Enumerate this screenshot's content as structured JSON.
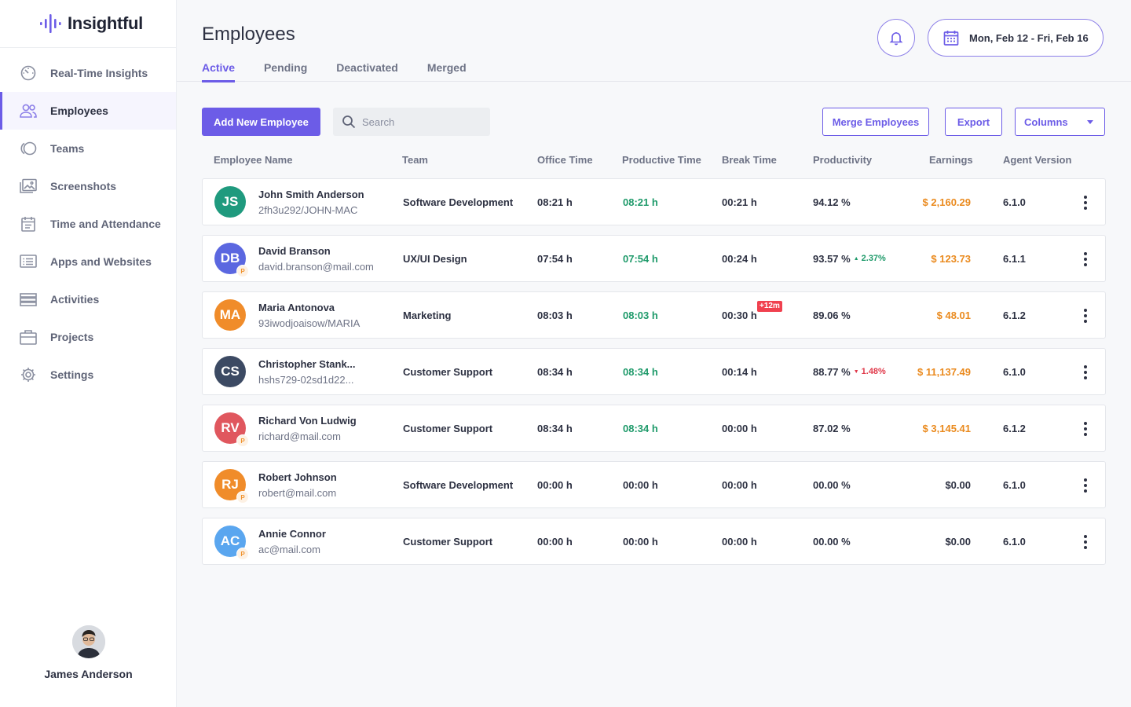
{
  "app": {
    "logo_text": "Insightful",
    "brand_color": "#6c5ce7"
  },
  "sidebar": {
    "items": [
      {
        "label": "Real-Time Insights",
        "icon": "speedometer-icon"
      },
      {
        "label": "Employees",
        "icon": "users-icon",
        "active": true
      },
      {
        "label": "Teams",
        "icon": "teams-icon"
      },
      {
        "label": "Screenshots",
        "icon": "image-gallery-icon"
      },
      {
        "label": "Time and Attendance",
        "icon": "calendar-icon"
      },
      {
        "label": "Apps and Websites",
        "icon": "browser-list-icon"
      },
      {
        "label": "Activities",
        "icon": "stacked-bars-icon"
      },
      {
        "label": "Projects",
        "icon": "briefcase-icon"
      },
      {
        "label": "Settings",
        "icon": "gear-icon"
      }
    ],
    "profile_name": "James Anderson"
  },
  "header": {
    "title": "Employees",
    "tabs": [
      {
        "label": "Active",
        "active": true
      },
      {
        "label": "Pending"
      },
      {
        "label": "Deactivated"
      },
      {
        "label": "Merged"
      }
    ],
    "date_range": "Mon, Feb 12 - Fri,  Feb 16"
  },
  "toolbar": {
    "add_label": "Add New Employee",
    "search_placeholder": "Search",
    "merge_label": "Merge Employees",
    "export_label": "Export",
    "columns_label": "Columns"
  },
  "table": {
    "columns": [
      "Employee Name",
      "Team",
      "Office Time",
      "Productive Time",
      "Break Time",
      "Productivity",
      "Earnings",
      "Agent Version"
    ],
    "rows": [
      {
        "initials": "JS",
        "avatar_color": "#1f9a7e",
        "pending": false,
        "name": "John Smith Anderson",
        "sub": "2fh3u292/JOHN-MAC",
        "team": "Software Development",
        "office": "08:21 h",
        "productive": "08:21 h",
        "productive_green": true,
        "break": "00:21 h",
        "break_extra": "",
        "productivity": "94.12 %",
        "delta": "",
        "delta_dir": "",
        "earnings": "$ 2,160.29",
        "earnings_orange": true,
        "version": "6.1.0"
      },
      {
        "initials": "DB",
        "avatar_color": "#5b67e0",
        "pending": true,
        "pending_label": "P",
        "name": "David Branson",
        "sub": "david.branson@mail.com",
        "team": "UX/UI Design",
        "office": "07:54 h",
        "productive": "07:54 h",
        "productive_green": true,
        "break": "00:24 h",
        "break_extra": "",
        "productivity": "93.57 %",
        "delta": "2.37%",
        "delta_dir": "up",
        "earnings": "$ 123.73",
        "earnings_orange": true,
        "version": "6.1.1"
      },
      {
        "initials": "MA",
        "avatar_color": "#f08c2a",
        "pending": false,
        "name": "Maria Antonova",
        "sub": "93iwodjoaisow/MARIA",
        "team": "Marketing",
        "office": "08:03 h",
        "productive": "08:03 h",
        "productive_green": true,
        "break": "00:30 h",
        "break_extra": "+12m",
        "productivity": "89.06 %",
        "delta": "",
        "delta_dir": "",
        "earnings": "$ 48.01",
        "earnings_orange": true,
        "version": "6.1.2"
      },
      {
        "initials": "CS",
        "avatar_color": "#3c4a63",
        "pending": false,
        "name": "Christopher Stank...",
        "sub": "hshs729-02sd1d22...",
        "team": "Customer Support",
        "office": "08:34 h",
        "productive": "08:34 h",
        "productive_green": true,
        "break": "00:14 h",
        "break_extra": "",
        "productivity": "88.77 %",
        "delta": "1.48%",
        "delta_dir": "down",
        "earnings": "$ 11,137.49",
        "earnings_orange": true,
        "version": "6.1.0"
      },
      {
        "initials": "RV",
        "avatar_color": "#e0575e",
        "pending": true,
        "pending_label": "P",
        "name": "Richard Von Ludwig",
        "sub": "richard@mail.com",
        "team": "Customer Support",
        "office": "08:34 h",
        "productive": "08:34 h",
        "productive_green": true,
        "break": "00:00 h",
        "break_extra": "",
        "productivity": "87.02 %",
        "delta": "",
        "delta_dir": "",
        "earnings": "$ 3,145.41",
        "earnings_orange": true,
        "version": "6.1.2"
      },
      {
        "initials": "RJ",
        "avatar_color": "#f08c2a",
        "pending": true,
        "pending_label": "P",
        "name": "Robert Johnson",
        "sub": "robert@mail.com",
        "team": "Software Development",
        "office": "00:00 h",
        "productive": "00:00 h",
        "productive_green": false,
        "break": "00:00 h",
        "break_extra": "",
        "productivity": "00.00 %",
        "delta": "",
        "delta_dir": "",
        "earnings": "$0.00",
        "earnings_orange": false,
        "version": "6.1.0"
      },
      {
        "initials": "AC",
        "avatar_color": "#5aa6ef",
        "pending": true,
        "pending_label": "P",
        "name": "Annie Connor",
        "sub": "ac@mail.com",
        "team": "Customer Support",
        "office": "00:00 h",
        "productive": "00:00 h",
        "productive_green": false,
        "break": "00:00 h",
        "break_extra": "",
        "productivity": "00.00 %",
        "delta": "",
        "delta_dir": "",
        "earnings": "$0.00",
        "earnings_orange": false,
        "version": "6.1.0"
      }
    ]
  }
}
